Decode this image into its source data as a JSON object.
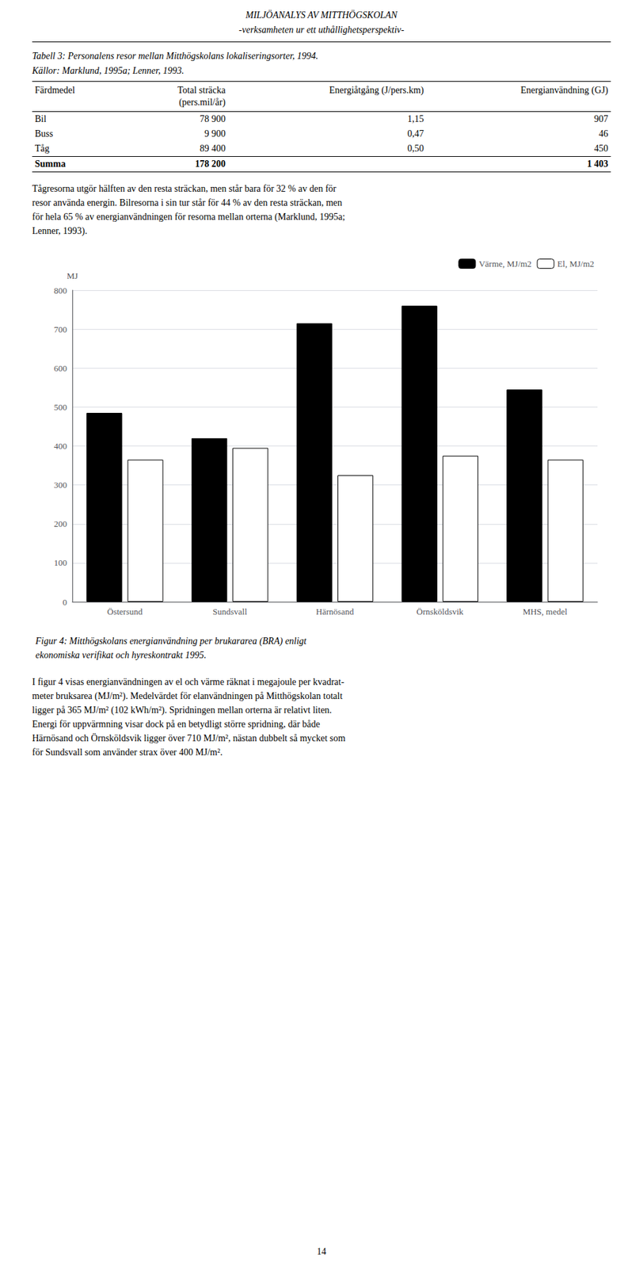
{
  "page": {
    "header": [
      "MILJÖANALYS AV MITTHÖGSKOLAN",
      "-verksamheten ur ett uthållighetsperspektiv-"
    ],
    "table": {
      "caption": [
        "Tabell 3: Personalens resor mellan Mitthögskolans lokaliseringsorter, 1994.",
        "Källor: Marklund, 1995a; Lenner, 1993."
      ],
      "columns": [
        [
          "Färdmedel"
        ],
        [
          "Total sträcka",
          "(pers.mil/år)"
        ],
        [
          "Energiåtgång (J/pers.km)"
        ],
        [
          "Energianvändning (GJ)"
        ]
      ],
      "rows": [
        [
          "Bil",
          "78 900",
          "1,15",
          "907"
        ],
        [
          "Buss",
          "9 900",
          "0,47",
          "46"
        ],
        [
          "Tåg",
          "89 400",
          "0,50",
          "450"
        ],
        [
          "Summa",
          "178 200",
          null,
          "1 403"
        ]
      ]
    },
    "body_before": [
      "Tågresorna utgör hälften av den resta sträckan, men står bara för 32 % av den för",
      "resor använda energin. Bilresorna i sin tur står för 44 % av den resta sträckan, men",
      "för hela 65 % av energianvändningen för resorna mellan orterna (Marklund, 1995a;",
      "Lenner, 1993)."
    ],
    "body_after": [
      "I figur 4 visas energianvändningen av el och värme räknat i megajoule per kvadrat-",
      "meter bruksarea (MJ/m²). Medelvärdet för elanvändningen på Mitthögskolan totalt",
      "ligger på 365 MJ/m² (102 kWh/m²). Spridningen mellan orterna är relativt liten.",
      "Energi för uppvärmning visar dock på en betydligt större spridning, där både",
      "Härnösand och Örnsköldsvik ligger över 710 MJ/m², nästan dubbelt så mycket som",
      "för Sundsvall som använder strax över 400 MJ/m²."
    ],
    "page_number": "14"
  },
  "chart_data": {
    "type": "bar",
    "title": "Figur 4: Mitthögskolans energianvändning per brukararea (BRA) enligt\nekonomiska verifikat och hyreskontrakt 1995.",
    "ylabel": "MJ",
    "categories": [
      "Östersund",
      "Sundsvall",
      "Härnösand",
      "Örnsköldsvik",
      "MHS, medel"
    ],
    "series": [
      {
        "name": "Värme, MJ/m2",
        "color": "#000000",
        "values": [
          485,
          420,
          715,
          760,
          545
        ]
      },
      {
        "name": "El, MJ/m2",
        "color": "#ffffff",
        "values": [
          365,
          395,
          325,
          375,
          365
        ]
      }
    ],
    "ylim": [
      0,
      800
    ],
    "yticks": [
      0,
      100,
      200,
      300,
      400,
      500,
      600,
      700,
      800
    ],
    "grid": true,
    "legend": "upper right"
  }
}
